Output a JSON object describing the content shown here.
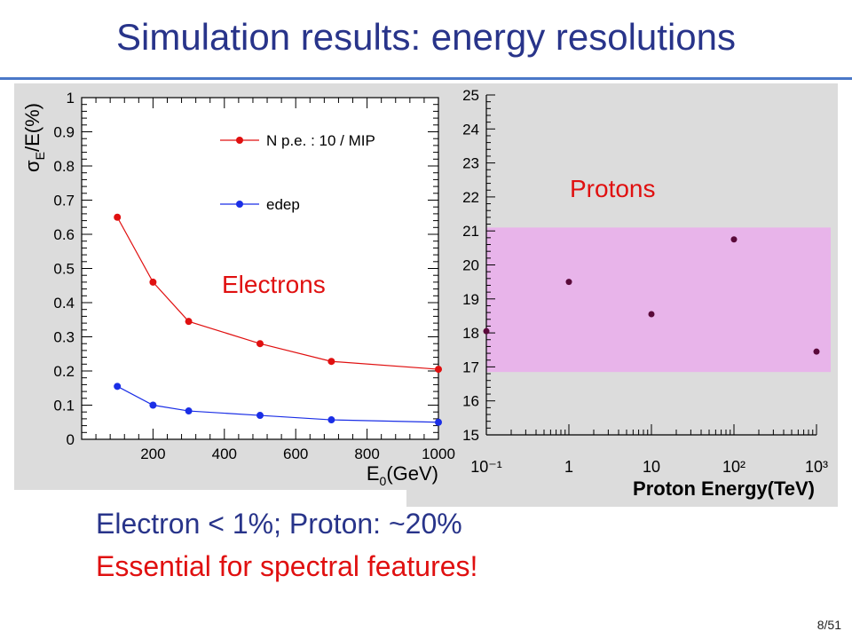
{
  "slide": {
    "title": "Simulation results: energy resolutions",
    "line1": "Electron < 1%; Proton: ~20%",
    "line2": "Essential for spectral features!",
    "page": "8/51",
    "colors": {
      "title": "#28348a",
      "accent": "#e01010",
      "rule": "#4a78c8"
    }
  },
  "chart_data": [
    {
      "type": "line",
      "xlabel": "E0(GeV)",
      "ylabel": "σE/E(%)",
      "xlim": [
        0,
        1000
      ],
      "ylim": [
        0,
        1
      ],
      "x_ticks": [
        200,
        400,
        600,
        800,
        1000
      ],
      "y_ticks": [
        0,
        0.1,
        0.2,
        0.3,
        0.4,
        0.5,
        0.6,
        0.7,
        0.8,
        0.9,
        1
      ],
      "annotation": "Electrons",
      "legend_position": "top-right",
      "series": [
        {
          "name": "N p.e. : 10 / MIP",
          "color": "#e01010",
          "x": [
            100,
            200,
            300,
            500,
            700,
            1000
          ],
          "y": [
            0.65,
            0.46,
            0.345,
            0.28,
            0.228,
            0.205
          ]
        },
        {
          "name": "edep",
          "color": "#1a2ee6",
          "x": [
            100,
            200,
            300,
            500,
            700,
            1000
          ],
          "y": [
            0.155,
            0.1,
            0.083,
            0.07,
            0.057,
            0.05
          ]
        }
      ]
    },
    {
      "type": "scatter",
      "xlabel": "Proton Energy(TeV)",
      "xscale": "log",
      "xlim": [
        0.1,
        1000
      ],
      "ylim": [
        15,
        25
      ],
      "x_tick_labels": [
        "10⁻¹",
        "1",
        "10",
        "10²",
        "10³"
      ],
      "y_ticks": [
        15,
        16,
        17,
        18,
        19,
        20,
        21,
        22,
        23,
        24,
        25
      ],
      "annotation": "Protons",
      "band": {
        "ylow": 16.85,
        "yhigh": 21.1,
        "color": "#e8b4ea"
      },
      "point_color": "#5a0a3a",
      "points": [
        {
          "x": 0.1,
          "y": 18.05
        },
        {
          "x": 1,
          "y": 19.5
        },
        {
          "x": 10,
          "y": 18.55
        },
        {
          "x": 100,
          "y": 20.75
        },
        {
          "x": 1000,
          "y": 17.45
        }
      ]
    }
  ]
}
